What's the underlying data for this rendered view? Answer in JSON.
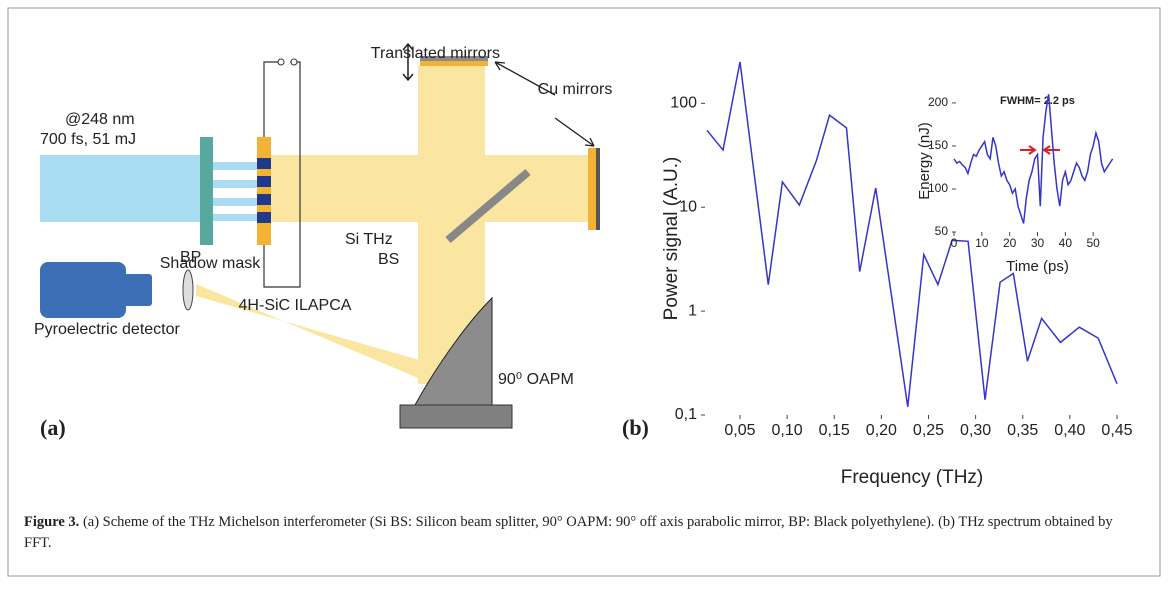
{
  "diagram": {
    "translated_mirrors": "Translated mirrors",
    "cu_mirrors": "Cu mirrors",
    "wavelength": "@248 nm",
    "pulse": "700 fs, 51 mJ",
    "shadow_mask": "Shadow mask",
    "ilapca": "4H-SiC ILAPCA",
    "bs_line1": "Si THz",
    "bs_line2": "BS",
    "bp": "BP",
    "oapm": "90⁰ OAPM",
    "detector": "Pyroelectric detector",
    "panel_label": "(a)"
  },
  "chart_data": [
    {
      "type": "line",
      "panel_label": "(b)",
      "x_label": "Frequency (THz)",
      "y_label": "Power signal (A.U.)",
      "log_y": true,
      "color": "#3535cc",
      "x": [
        0.015,
        0.032,
        0.05,
        0.08,
        0.095,
        0.113,
        0.131,
        0.145,
        0.163,
        0.177,
        0.194,
        0.228,
        0.245,
        0.26,
        0.275,
        0.292,
        0.31,
        0.326,
        0.34,
        0.355,
        0.37,
        0.39,
        0.41,
        0.43,
        0.45
      ],
      "values": [
        55,
        35.5,
        250,
        1.8,
        17.5,
        10.5,
        28,
        77,
        58,
        2.4,
        15.3,
        0.12,
        3.5,
        1.8,
        4.8,
        4.7,
        0.14,
        1.9,
        2.3,
        0.33,
        0.85,
        0.5,
        0.7,
        0.55,
        0.2
      ],
      "xlim": [
        0.015,
        0.45
      ],
      "ylim": [
        0.1,
        250
      ],
      "xticks": [
        {
          "value": 0.05,
          "label": "0,05"
        },
        {
          "value": 0.1,
          "label": "0,10"
        },
        {
          "value": 0.15,
          "label": "0,15"
        },
        {
          "value": 0.2,
          "label": "0,20"
        },
        {
          "value": 0.25,
          "label": "0,25"
        },
        {
          "value": 0.3,
          "label": "0,30"
        },
        {
          "value": 0.35,
          "label": "0,35"
        },
        {
          "value": 0.4,
          "label": "0,40"
        },
        {
          "value": 0.45,
          "label": "0,45"
        }
      ],
      "yticks": [
        {
          "value": 0.1,
          "label": "0,1"
        },
        1,
        10,
        100
      ]
    },
    {
      "type": "line",
      "annotation": "FWHM= 2.2 ps",
      "x_label": "Time (ps)",
      "y_label": "Energy (nJ)",
      "color": "#3535cc",
      "x": [
        0,
        1,
        2,
        3,
        4,
        5,
        6,
        7,
        8,
        9,
        10,
        11,
        12,
        13,
        14,
        15,
        16,
        17,
        18,
        19,
        20,
        21,
        22,
        23,
        24,
        25,
        26,
        27,
        28,
        29,
        30,
        31,
        32,
        33,
        34,
        35,
        36,
        37,
        38,
        39,
        40,
        41,
        42,
        43,
        44,
        45,
        46,
        47,
        48,
        49,
        50,
        51,
        52,
        53,
        54,
        55,
        56,
        57
      ],
      "values": [
        135,
        130,
        132,
        128,
        125,
        118,
        130,
        140,
        138,
        145,
        150,
        155,
        140,
        135,
        160,
        150,
        130,
        115,
        120,
        110,
        105,
        95,
        100,
        80,
        70,
        60,
        90,
        110,
        120,
        135,
        140,
        80,
        160,
        190,
        210,
        170,
        130,
        100,
        80,
        110,
        120,
        105,
        110,
        120,
        130,
        125,
        115,
        110,
        120,
        140,
        150,
        165,
        155,
        130,
        120,
        125,
        130,
        135
      ],
      "xlim": [
        0,
        60
      ],
      "ylim": [
        50,
        215
      ],
      "xticks": [
        0,
        10,
        20,
        30,
        40,
        50
      ],
      "yticks": [
        50,
        100,
        150,
        200
      ]
    }
  ],
  "caption": {
    "label": "Figure 3.",
    "text": "(a) Scheme of the THz Michelson interferometer (Si BS: Silicon beam splitter, 90° OAPM: 90° off axis parabolic mirror, BP: Black polyethylene). (b) THz spectrum obtained by FFT."
  }
}
